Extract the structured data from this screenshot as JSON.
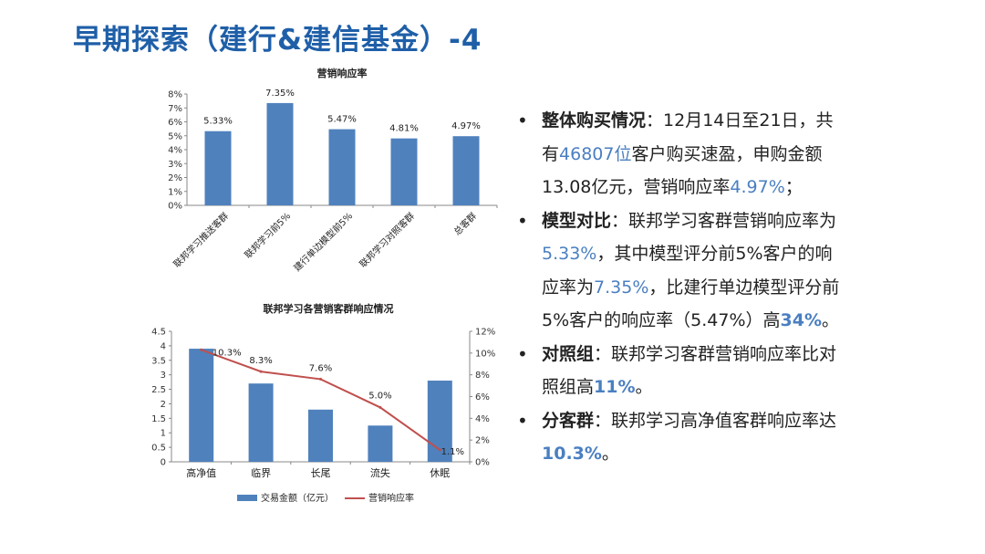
{
  "page": {
    "title": "早期探索（建行&建信基金）-4"
  },
  "chart_data": [
    {
      "type": "bar",
      "title": "营销响应率",
      "categories": [
        "联邦学习推送客群",
        "联邦学习前5%",
        "建行单边模型前5%",
        "联邦学习对照客群",
        "总客群"
      ],
      "values": [
        5.33,
        7.35,
        5.47,
        4.81,
        4.97
      ],
      "value_labels": [
        "5.33%",
        "7.35%",
        "5.47%",
        "4.81%",
        "4.97%"
      ],
      "ylim": [
        0,
        8
      ],
      "yticks": [
        "0%",
        "1%",
        "2%",
        "3%",
        "4%",
        "5%",
        "6%",
        "7%",
        "8%"
      ],
      "color": "#4f81bd"
    },
    {
      "type": "bar+line",
      "title": "联邦学习各营销客群响应情况",
      "categories": [
        "高净值",
        "临界",
        "长尾",
        "流失",
        "休眠"
      ],
      "series": [
        {
          "name": "交易金额（亿元）",
          "type": "bar",
          "axis": "left",
          "values": [
            3.9,
            2.7,
            1.8,
            1.25,
            2.8
          ],
          "color": "#4f81bd"
        },
        {
          "name": "营销响应率",
          "type": "line",
          "axis": "right",
          "values": [
            10.3,
            8.3,
            7.6,
            5.0,
            1.1
          ],
          "color": "#c0504d"
        }
      ],
      "line_labels": [
        "10.3%",
        "8.3%",
        "7.6%",
        "5.0%",
        "1.1%"
      ],
      "ylim_left": [
        0,
        4.5
      ],
      "yticks_left": [
        "0",
        "0.5",
        "1",
        "1.5",
        "2",
        "2.5",
        "3",
        "3.5",
        "4",
        "4.5"
      ],
      "ylim_right": [
        0,
        12
      ],
      "yticks_right": [
        "0%",
        "2%",
        "4%",
        "6%",
        "8%",
        "10%",
        "12%"
      ],
      "legend": [
        "交易金额（亿元）",
        "营销响应率"
      ]
    }
  ],
  "bullets": [
    {
      "label": "整体购买情况",
      "colon": "：",
      "t1": "12月14日至21日，共有",
      "h1": "46807位",
      "t2": "客户购买速盈，申购金额13.08亿元，营销响应率",
      "h2": "4.97%",
      "t3": "；"
    },
    {
      "label": "模型对比",
      "colon": "：",
      "t1": "联邦学习客群营销响应率为",
      "h1": "5.33%",
      "t2": "，其中模型评分前5%客户的响应率为",
      "h2": "7.35%",
      "t3": "，比建行单边模型评分前5%客户的响应率（5.47%）高",
      "h3": "34%",
      "t4": "。"
    },
    {
      "label": "对照组",
      "colon": "：",
      "t1": "联邦学习客群营销响应率比对照组高",
      "h1": "11%",
      "t2": "。"
    },
    {
      "label": "分客群",
      "colon": "：",
      "t1": "联邦学习高净值客群响应率达",
      "h1": "10.3%",
      "t2": "。"
    }
  ]
}
